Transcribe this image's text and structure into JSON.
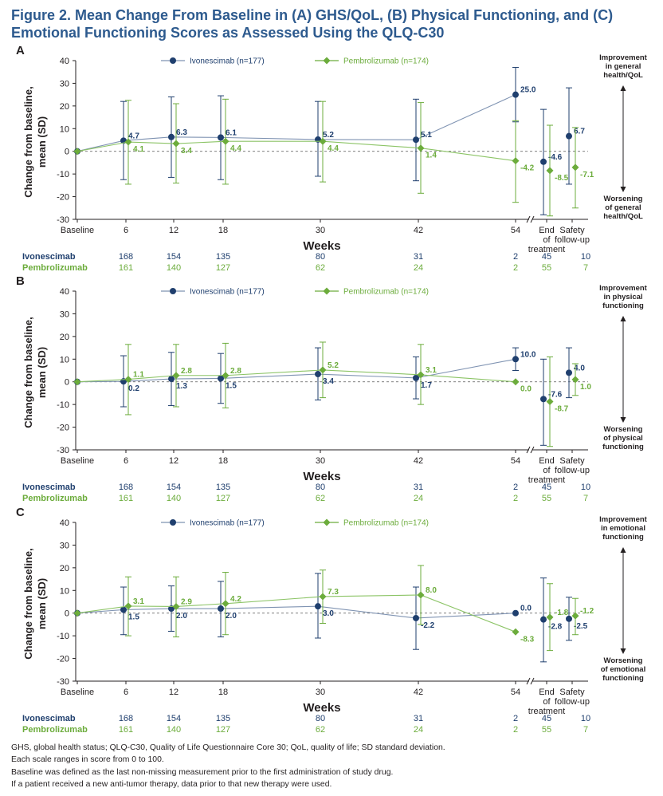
{
  "figure": {
    "title": "Figure 2. Mean Change From Baseline in (A) GHS/QoL, (B) Physical Functioning, and (C) Emotional Functioning Scores as Assessed Using the QLQ-C30"
  },
  "colors": {
    "ivonescimab": "#1f3f6e",
    "pembrolizumab": "#6cac3c",
    "axis": "#231f20",
    "title": "#2d5a8e"
  },
  "chart_data": [
    {
      "type": "line",
      "panel": "A",
      "ylabel_line1": "Change from baseline,",
      "ylabel_line2": "mean (SD)",
      "xlabel": "Weeks",
      "ylim": [
        -30,
        40
      ],
      "yticks": [
        -30,
        -20,
        -10,
        0,
        10,
        20,
        30,
        40
      ],
      "categories": [
        "Baseline",
        "6",
        "12",
        "18",
        "30",
        "42",
        "54",
        "End of treatment",
        "Safety follow-up"
      ],
      "category_labels": [
        [
          "Baseline"
        ],
        [
          "6"
        ],
        [
          "12"
        ],
        [
          "18"
        ],
        [
          "30"
        ],
        [
          "42"
        ],
        [
          "54"
        ],
        [
          "End",
          "of",
          "treatment"
        ],
        [
          "Safety",
          "follow-up"
        ]
      ],
      "series": [
        {
          "name": "Ivonescimab",
          "legend": "Ivonescimab (n=177)",
          "values": [
            0,
            4.7,
            6.3,
            6.1,
            5.2,
            5.1,
            25.0,
            -4.6,
            6.7
          ],
          "labels": [
            "",
            "4.7",
            "6.3",
            "6.1",
            "5.2",
            "5.1",
            "25.0",
            "-4.6",
            "6.7"
          ],
          "err_low": [
            0,
            -12.5,
            -11.5,
            -12.5,
            -11,
            -13,
            13,
            -28,
            -14.5
          ],
          "err_high": [
            0,
            22,
            24,
            24.5,
            22,
            23,
            37,
            18.5,
            28
          ]
        },
        {
          "name": "Pembrolizumab",
          "legend": "Pembrolizumab (n=174)",
          "values": [
            0,
            4.1,
            3.4,
            4.4,
            4.4,
            1.4,
            -4.2,
            -8.5,
            -7.1
          ],
          "labels": [
            "",
            "4.1",
            "3.4",
            "4.4",
            "4.4",
            "1.4",
            "-4.2",
            "-8.5",
            "-7.1"
          ],
          "err_low": [
            0,
            -14.5,
            -14,
            -14.5,
            -13.5,
            -18.5,
            -22.5,
            -28.5,
            -25
          ],
          "err_high": [
            0,
            22.5,
            21,
            23,
            22,
            21.5,
            13.5,
            11.5,
            10.5
          ]
        }
      ],
      "improvement_label": [
        "Improvement",
        "in general",
        "health/QoL"
      ],
      "worsening_label": [
        "Worsening",
        "of general",
        "health/QoL"
      ],
      "n_at_risk": {
        "Ivonescimab": [
          "168",
          "154",
          "135",
          "80",
          "31",
          "2",
          "45",
          "10"
        ],
        "Pembrolizumab": [
          "161",
          "140",
          "127",
          "62",
          "24",
          "2",
          "55",
          "7"
        ]
      }
    },
    {
      "type": "line",
      "panel": "B",
      "ylabel_line1": "Change from baseline,",
      "ylabel_line2": "mean (SD)",
      "xlabel": "Weeks",
      "ylim": [
        -30,
        40
      ],
      "yticks": [
        -30,
        -20,
        -10,
        0,
        10,
        20,
        30,
        40
      ],
      "categories": [
        "Baseline",
        "6",
        "12",
        "18",
        "30",
        "42",
        "54",
        "End of treatment",
        "Safety follow-up"
      ],
      "category_labels": [
        [
          "Baseline"
        ],
        [
          "6"
        ],
        [
          "12"
        ],
        [
          "18"
        ],
        [
          "30"
        ],
        [
          "42"
        ],
        [
          "54"
        ],
        [
          "End",
          "of",
          "treatment"
        ],
        [
          "Safety",
          "follow-up"
        ]
      ],
      "series": [
        {
          "name": "Ivonescimab",
          "legend": "Ivonescimab (n=177)",
          "values": [
            0,
            0.2,
            1.3,
            1.5,
            3.4,
            1.7,
            10.0,
            -7.6,
            4.0
          ],
          "labels": [
            "",
            "0.2",
            "1.3",
            "1.5",
            "3.4",
            "1.7",
            "10.0",
            "-7.6",
            "4.0"
          ],
          "err_low": [
            0,
            -11,
            -10.5,
            -9.5,
            -8,
            -7.5,
            5,
            -28,
            -7
          ],
          "err_high": [
            0,
            11.5,
            13,
            12.5,
            15,
            11,
            15,
            10,
            15
          ]
        },
        {
          "name": "Pembrolizumab",
          "legend": "Pembrolizumab (n=174)",
          "values": [
            0,
            1.1,
            2.8,
            2.8,
            5.2,
            3.1,
            0.0,
            -8.7,
            1.0
          ],
          "labels": [
            "",
            "1.1",
            "2.8",
            "2.8",
            "5.2",
            "3.1",
            "0.0",
            "-8.7",
            "1.0"
          ],
          "err_low": [
            0,
            -14.5,
            -11,
            -11.5,
            -7,
            -10,
            0,
            -28.5,
            -6
          ],
          "err_high": [
            0,
            16.5,
            16.5,
            17,
            17.5,
            16.5,
            0,
            11,
            8
          ]
        }
      ],
      "improvement_label": [
        "Improvement",
        "in physical",
        "functioning"
      ],
      "worsening_label": [
        "Worsening",
        "of physical",
        "functioning"
      ],
      "n_at_risk": {
        "Ivonescimab": [
          "168",
          "154",
          "135",
          "80",
          "31",
          "2",
          "45",
          "10"
        ],
        "Pembrolizumab": [
          "161",
          "140",
          "127",
          "62",
          "24",
          "2",
          "55",
          "7"
        ]
      }
    },
    {
      "type": "line",
      "panel": "C",
      "ylabel_line1": "Change from baseline,",
      "ylabel_line2": "mean (SD)",
      "xlabel": "Weeks",
      "ylim": [
        -30,
        40
      ],
      "yticks": [
        -30,
        -20,
        -10,
        0,
        10,
        20,
        30,
        40
      ],
      "categories": [
        "Baseline",
        "6",
        "12",
        "18",
        "30",
        "42",
        "54",
        "End of treatment",
        "Safety follow-up"
      ],
      "category_labels": [
        [
          "Baseline"
        ],
        [
          "6"
        ],
        [
          "12"
        ],
        [
          "18"
        ],
        [
          "30"
        ],
        [
          "42"
        ],
        [
          "54"
        ],
        [
          "End",
          "of",
          "treatment"
        ],
        [
          "Safety",
          "follow-up"
        ]
      ],
      "series": [
        {
          "name": "Ivonescimab",
          "legend": "Ivonescimab (n=177)",
          "values": [
            0,
            1.5,
            2.0,
            2.0,
            3.0,
            -2.2,
            0.0,
            -2.8,
            -2.5
          ],
          "labels": [
            "",
            "1.5",
            "2.0",
            "2.0",
            "3.0",
            "-2.2",
            "0.0",
            "-2.8",
            "-2.5"
          ],
          "err_low": [
            0,
            -9.5,
            -8,
            -10.5,
            -11,
            -16,
            0,
            -21.5,
            -12
          ],
          "err_high": [
            0,
            11.5,
            12,
            14,
            17.5,
            11.5,
            0,
            15.5,
            7
          ]
        },
        {
          "name": "Pembrolizumab",
          "legend": "Pembrolizumab (n=174)",
          "values": [
            0,
            3.1,
            2.9,
            4.2,
            7.3,
            8.0,
            -8.3,
            -1.8,
            -1.2
          ],
          "labels": [
            "",
            "3.1",
            "2.9",
            "4.2",
            "7.3",
            "8.0",
            "-8.3",
            "-1.8",
            "-1.2"
          ],
          "err_low": [
            0,
            -10,
            -10.5,
            -9.5,
            -4.5,
            -5,
            -8.3,
            -16.5,
            -9.5
          ],
          "err_high": [
            0,
            16,
            16,
            18,
            19,
            21,
            -8.3,
            13,
            6.5
          ]
        }
      ],
      "improvement_label": [
        "Improvement",
        "in emotional",
        "functioning"
      ],
      "worsening_label": [
        "Worsening",
        "of emotional",
        "functioning"
      ],
      "n_at_risk": {
        "Ivonescimab": [
          "168",
          "154",
          "135",
          "80",
          "31",
          "2",
          "45",
          "10"
        ],
        "Pembrolizumab": [
          "161",
          "140",
          "127",
          "62",
          "24",
          "2",
          "55",
          "7"
        ]
      }
    }
  ],
  "footnotes": [
    "GHS, global health status; QLQ-C30, Quality of Life Questionnaire Core 30; QoL, quality of life; SD standard deviation.",
    "Each scale ranges in score from 0 to 100.",
    "Baseline was defined as the last non-missing measurement prior to the first administration of study drug.",
    "If a patient received a new anti-tumor therapy, data prior to that new therapy were used."
  ]
}
